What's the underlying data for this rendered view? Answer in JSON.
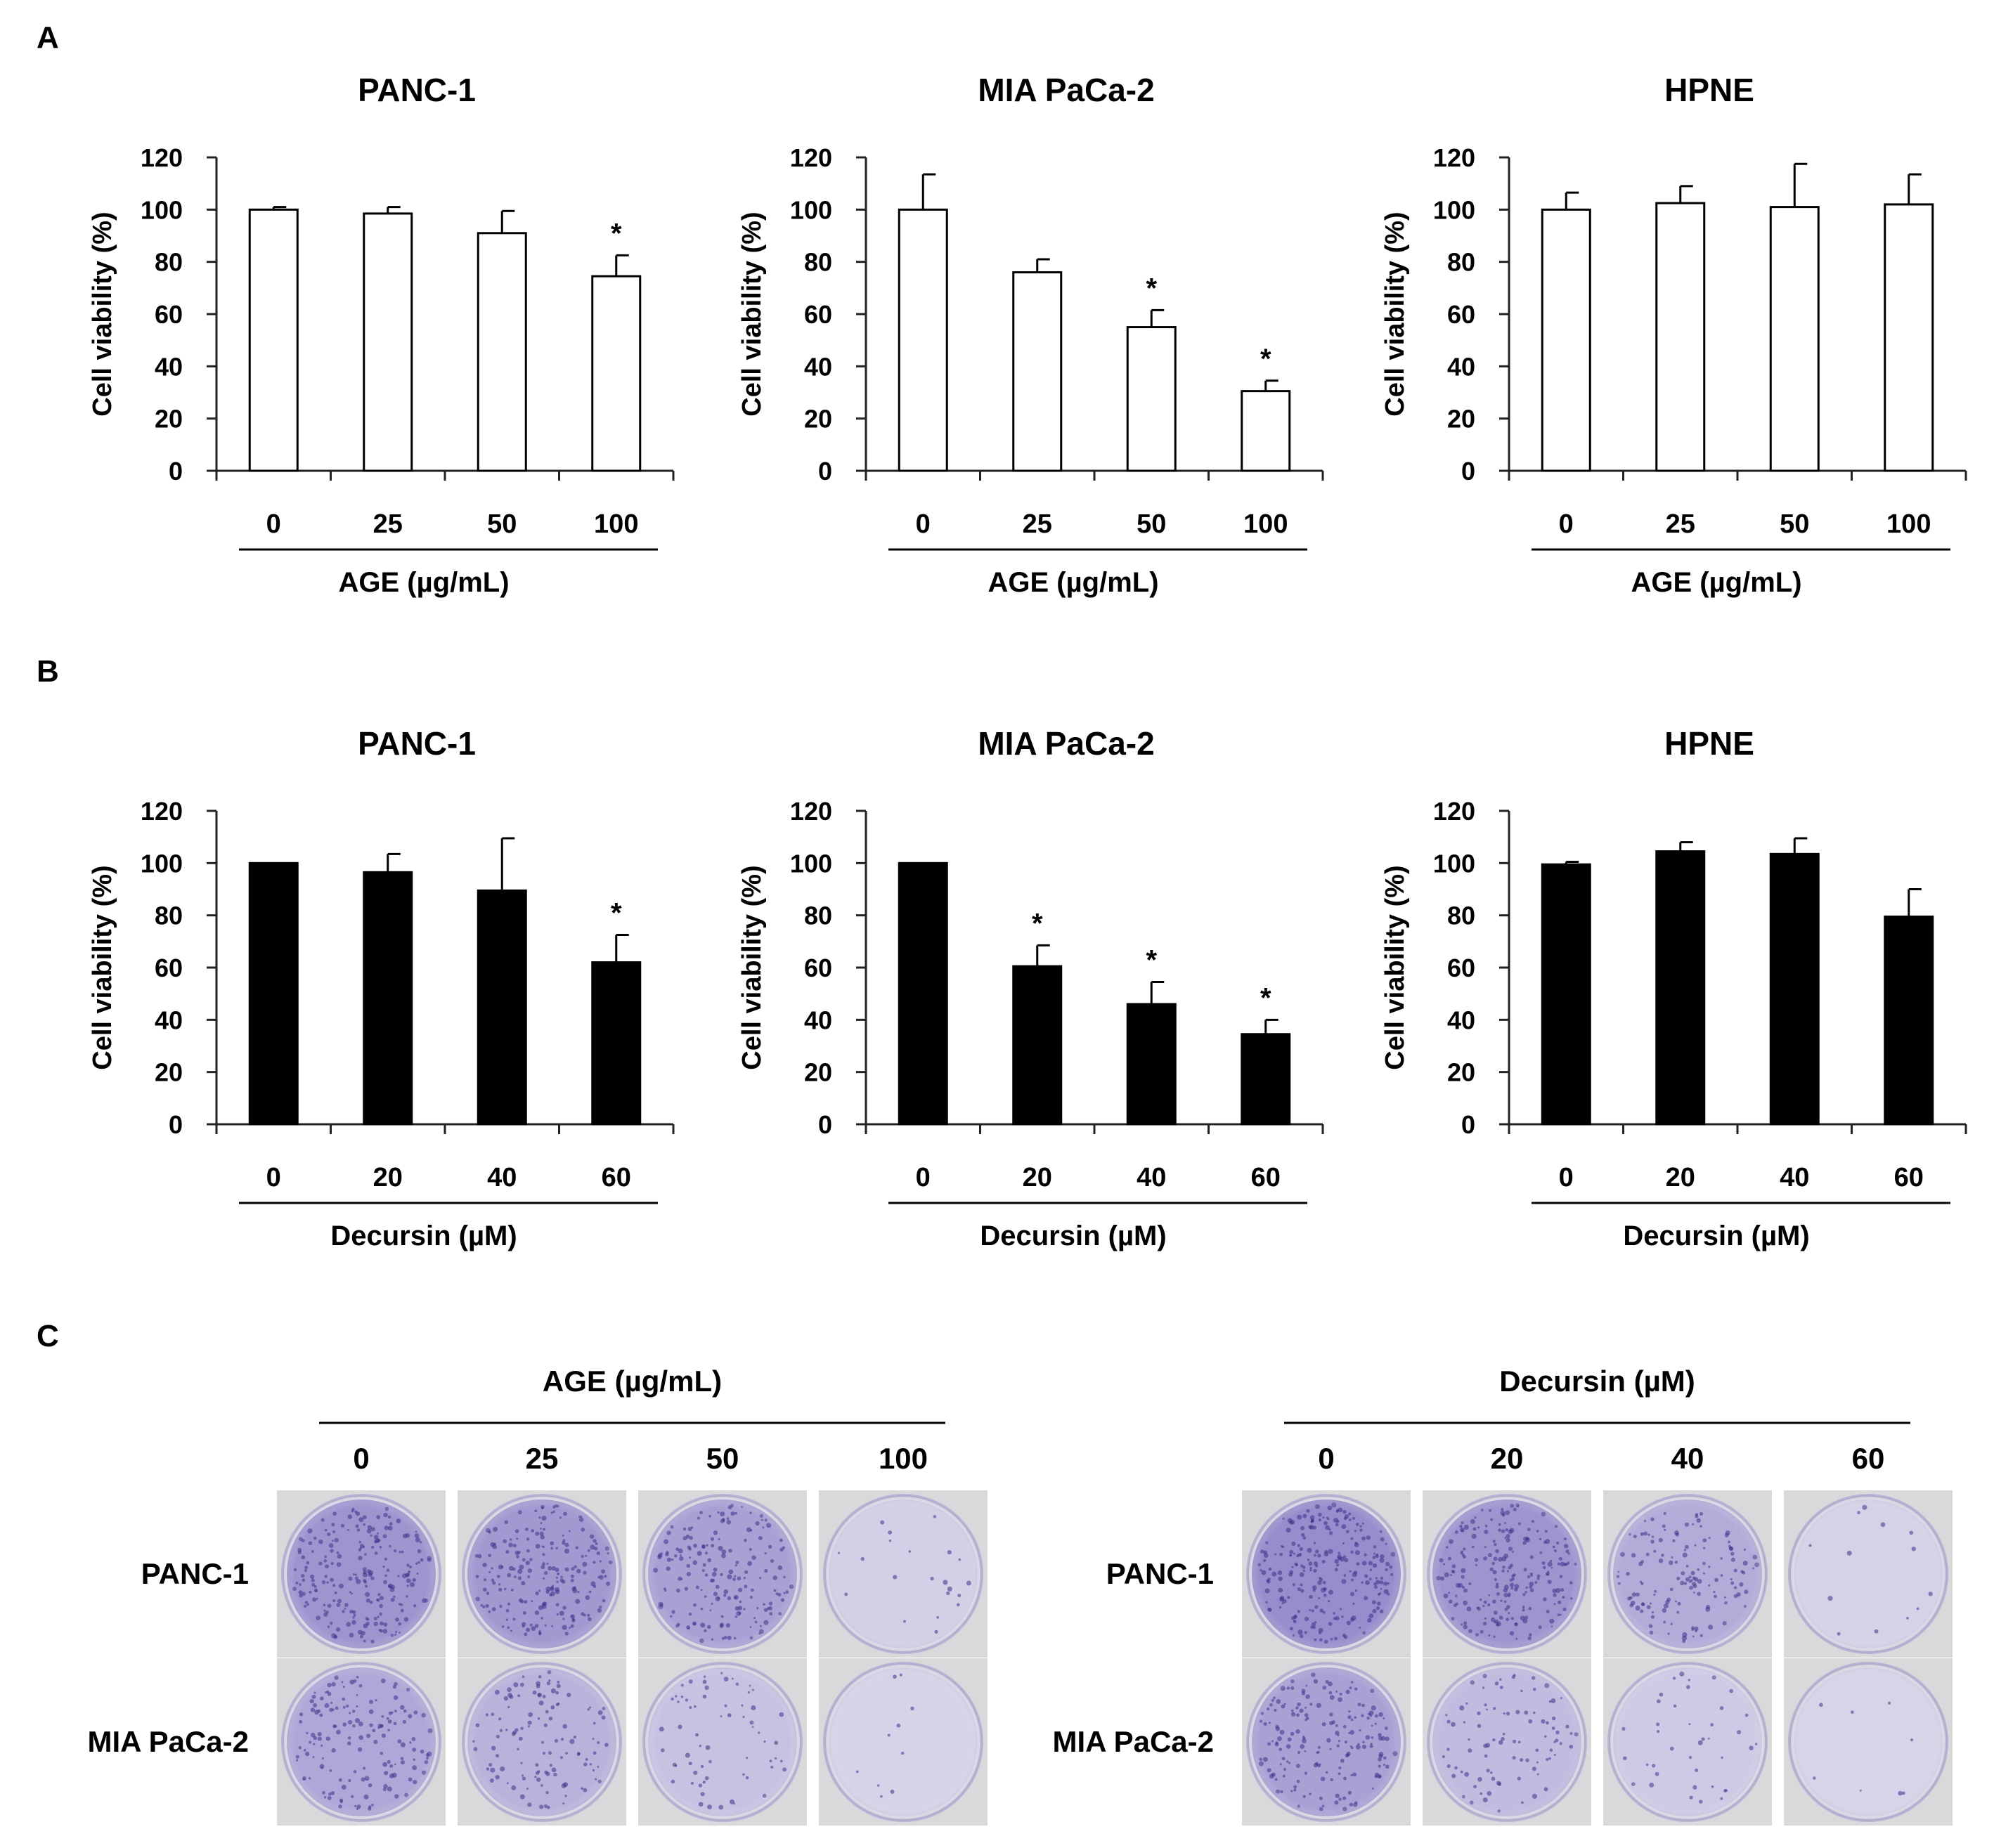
{
  "panel_letters": {
    "a": "A",
    "b": "B",
    "c": "C"
  },
  "colors": {
    "open_bar": "#ffffff",
    "filled_bar": "#000000",
    "axis": "#222222",
    "stain": "#6a5cb8",
    "well_bg": "#d9d9dc"
  },
  "chart_data": [
    {
      "id": "A-PANC-1",
      "type": "bar",
      "title": "PANC-1",
      "ylabel": "Cell viability (%)",
      "xlabel": "AGE (µg/mL)",
      "categories": [
        "0",
        "25",
        "50",
        "100"
      ],
      "values": [
        100,
        98.5,
        91,
        74.5
      ],
      "errors": [
        1,
        2.5,
        8.5,
        8
      ],
      "significance": [
        "",
        "",
        "",
        "*"
      ],
      "ylim": [
        0,
        120
      ],
      "yticks": [
        "0",
        "20",
        "40",
        "60",
        "80",
        "100",
        "120"
      ],
      "fill": "open",
      "grid": false
    },
    {
      "id": "A-MIA",
      "type": "bar",
      "title": "MIA PaCa-2",
      "ylabel": "Cell viability (%)",
      "xlabel": "AGE (µg/mL)",
      "categories": [
        "0",
        "25",
        "50",
        "100"
      ],
      "values": [
        100,
        76,
        55,
        30.5
      ],
      "errors": [
        13.5,
        5,
        6.5,
        4
      ],
      "significance": [
        "",
        "",
        "*",
        "*"
      ],
      "ylim": [
        0,
        120
      ],
      "yticks": [
        "0",
        "20",
        "40",
        "60",
        "80",
        "100",
        "120"
      ],
      "fill": "open",
      "grid": false
    },
    {
      "id": "A-HPNE",
      "type": "bar",
      "title": "HPNE",
      "ylabel": "Cell viability (%)",
      "xlabel": "AGE (µg/mL)",
      "categories": [
        "0",
        "25",
        "50",
        "100"
      ],
      "values": [
        100,
        102.5,
        101,
        102
      ],
      "errors": [
        6.5,
        6.5,
        16.5,
        11.5
      ],
      "significance": [
        "",
        "",
        "",
        ""
      ],
      "ylim": [
        0,
        120
      ],
      "yticks": [
        "0",
        "20",
        "40",
        "60",
        "80",
        "100",
        "120"
      ],
      "fill": "open",
      "grid": false
    },
    {
      "id": "B-PANC-1",
      "type": "bar",
      "title": "PANC-1",
      "ylabel": "Cell viability (%)",
      "xlabel": "Decursin (µM)",
      "categories": [
        "0",
        "20",
        "40",
        "60"
      ],
      "values": [
        100,
        96.5,
        89.5,
        62
      ],
      "errors": [
        0,
        7,
        20,
        10.5
      ],
      "significance": [
        "",
        "",
        "",
        "*"
      ],
      "ylim": [
        0,
        120
      ],
      "yticks": [
        "0",
        "20",
        "40",
        "60",
        "80",
        "100",
        "120"
      ],
      "fill": "filled",
      "grid": false
    },
    {
      "id": "B-MIA",
      "type": "bar",
      "title": "MIA PaCa-2",
      "ylabel": "Cell viability (%)",
      "xlabel": "Decursin (µM)",
      "categories": [
        "0",
        "20",
        "40",
        "60"
      ],
      "values": [
        100,
        60.5,
        46,
        34.5
      ],
      "errors": [
        0,
        8,
        8.5,
        5.5
      ],
      "significance": [
        "",
        "*",
        "*",
        "*"
      ],
      "ylim": [
        0,
        120
      ],
      "yticks": [
        "0",
        "20",
        "40",
        "60",
        "80",
        "100",
        "120"
      ],
      "fill": "filled",
      "grid": false
    },
    {
      "id": "B-HPNE",
      "type": "bar",
      "title": "HPNE",
      "ylabel": "Cell viability (%)",
      "xlabel": "Decursin (µM)",
      "categories": [
        "0",
        "20",
        "40",
        "60"
      ],
      "values": [
        99.5,
        104.5,
        103.5,
        79.5
      ],
      "errors": [
        1,
        3.5,
        6,
        10.5
      ],
      "significance": [
        "",
        "",
        "",
        ""
      ],
      "ylim": [
        0,
        120
      ],
      "yticks": [
        "0",
        "20",
        "40",
        "60",
        "80",
        "100",
        "120"
      ],
      "fill": "filled",
      "grid": false
    }
  ],
  "colony_panels": [
    {
      "treatment_label": "AGE (µg/mL)",
      "doses": [
        "0",
        "25",
        "50",
        "100"
      ],
      "rows": [
        {
          "label": "PANC-1",
          "stain_density": [
            0.85,
            0.8,
            0.7,
            0.08
          ]
        },
        {
          "label": "MIA PaCa-2",
          "stain_density": [
            0.6,
            0.45,
            0.25,
            0.04
          ]
        }
      ]
    },
    {
      "treatment_label": "Decursin (µM)",
      "doses": [
        "0",
        "20",
        "40",
        "60"
      ],
      "rows": [
        {
          "label": "PANC-1",
          "stain_density": [
            0.95,
            0.85,
            0.55,
            0.05
          ]
        },
        {
          "label": "MIA PaCa-2",
          "stain_density": [
            0.7,
            0.35,
            0.15,
            0.03
          ]
        }
      ]
    }
  ]
}
